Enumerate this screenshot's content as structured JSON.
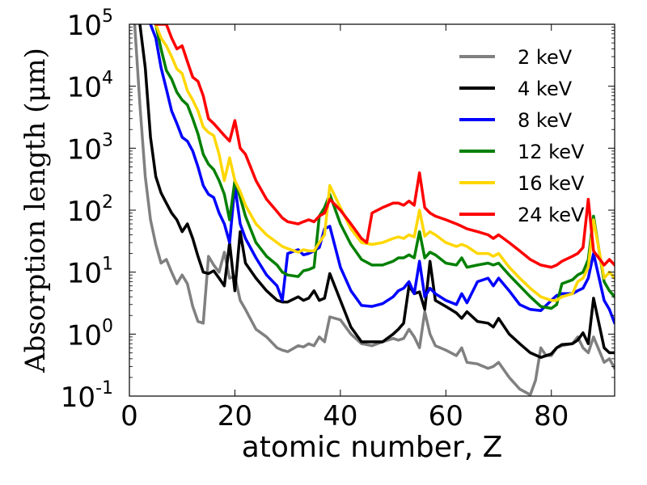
{
  "chart_data": {
    "type": "line",
    "title": "",
    "xlabel": "atomic number, Z",
    "ylabel": "Absorption length (μm)",
    "xlim": [
      0,
      92
    ],
    "ylim": [
      0.1,
      100000
    ],
    "yscale": "log",
    "x_ticks": [
      0,
      20,
      40,
      60,
      80
    ],
    "x_tick_labels": [
      "0",
      "20",
      "40",
      "60",
      "80"
    ],
    "y_ticks": [
      0.1,
      1,
      10,
      100,
      1000,
      10000,
      100000
    ],
    "y_tick_labels": [
      {
        "base": "10",
        "exp": "-1"
      },
      {
        "base": "10",
        "exp": "0"
      },
      {
        "base": "10",
        "exp": "1"
      },
      {
        "base": "10",
        "exp": "2"
      },
      {
        "base": "10",
        "exp": "3"
      },
      {
        "base": "10",
        "exp": "4"
      },
      {
        "base": "10",
        "exp": "5"
      }
    ],
    "grid": false,
    "legend_position": "upper-right",
    "series": [
      {
        "name": "2 keV",
        "color": "#808080",
        "x": [
          1,
          2,
          3,
          4,
          5,
          6,
          7,
          8,
          9,
          10,
          11,
          12,
          13,
          14,
          15,
          16,
          17,
          18,
          19,
          20,
          21,
          22,
          24,
          26,
          28,
          29,
          30,
          32,
          33,
          34,
          35,
          36,
          37,
          38,
          40,
          42,
          44,
          46,
          48,
          50,
          51,
          52,
          53,
          54,
          55,
          56,
          57,
          58,
          60,
          62,
          63,
          64,
          66,
          68,
          69,
          70,
          72,
          74,
          76,
          77,
          78,
          79,
          80,
          81,
          82,
          84,
          85,
          86,
          87,
          88,
          90,
          91,
          92
        ],
        "y": [
          100000,
          5000,
          350,
          70,
          28,
          14,
          16,
          10,
          6.5,
          9,
          6.5,
          2.8,
          1.6,
          1.5,
          18,
          13,
          10,
          21,
          8,
          8.5,
          3.5,
          2.5,
          1.2,
          0.9,
          0.6,
          0.55,
          0.52,
          0.65,
          0.62,
          0.7,
          0.65,
          0.9,
          0.75,
          1.9,
          1.7,
          1.0,
          0.7,
          0.65,
          0.75,
          0.85,
          0.8,
          0.85,
          1.2,
          0.9,
          0.6,
          2.3,
          1.0,
          0.65,
          0.55,
          0.45,
          0.6,
          0.35,
          0.33,
          0.28,
          0.3,
          0.35,
          0.2,
          0.13,
          0.105,
          0.18,
          0.6,
          0.45,
          0.45,
          0.6,
          0.65,
          0.7,
          0.9,
          0.6,
          0.5,
          0.9,
          0.35,
          0.4,
          0.28
        ]
      },
      {
        "name": "4 keV",
        "color": "#000000",
        "x": [
          2,
          3,
          4,
          5,
          6,
          7,
          8,
          9,
          10,
          11,
          12,
          13,
          14,
          15,
          16,
          17,
          18,
          19,
          20,
          21,
          22,
          24,
          26,
          28,
          29,
          30,
          32,
          33,
          34,
          35,
          36,
          37,
          38,
          40,
          42,
          44,
          46,
          48,
          50,
          51,
          52,
          53,
          54,
          55,
          56,
          57,
          58,
          60,
          62,
          63,
          64,
          66,
          68,
          69,
          70,
          72,
          74,
          76,
          78,
          80,
          81,
          82,
          84,
          85,
          86,
          87,
          88,
          90,
          91,
          92
        ],
        "y": [
          100000,
          20000,
          1500,
          350,
          190,
          130,
          90,
          70,
          45,
          60,
          35,
          18,
          10,
          9.5,
          10.5,
          8,
          6,
          30,
          5,
          45,
          14,
          8,
          5,
          3.5,
          3.3,
          3.3,
          4,
          3.5,
          3.8,
          5,
          3.5,
          3.8,
          9.5,
          3.5,
          1.3,
          0.75,
          0.75,
          0.75,
          1.0,
          1.2,
          1.5,
          6,
          4.5,
          4.8,
          2.5,
          15,
          3.5,
          2.8,
          2.2,
          1.8,
          2.3,
          1.6,
          1.5,
          1.3,
          1.8,
          1.0,
          0.7,
          0.5,
          0.42,
          0.48,
          0.6,
          0.68,
          0.7,
          0.8,
          1.05,
          0.7,
          3.8,
          0.6,
          0.5,
          0.5
        ]
      },
      {
        "name": "8 keV",
        "color": "#0000ff",
        "x": [
          4,
          5,
          6,
          7,
          8,
          9,
          10,
          11,
          12,
          13,
          14,
          15,
          16,
          17,
          18,
          19,
          20,
          21,
          22,
          24,
          26,
          28,
          29,
          30,
          32,
          33,
          34,
          35,
          36,
          37,
          38,
          40,
          42,
          44,
          46,
          48,
          50,
          51,
          52,
          53,
          54,
          55,
          56,
          57,
          58,
          60,
          62,
          63,
          64,
          66,
          68,
          69,
          70,
          72,
          74,
          76,
          78,
          80,
          81,
          82,
          84,
          85,
          86,
          87,
          88,
          90,
          91,
          92
        ],
        "y": [
          100000,
          60000,
          20000,
          9000,
          4000,
          2500,
          1500,
          1300,
          900,
          500,
          250,
          180,
          160,
          90,
          60,
          30,
          250,
          60,
          35,
          17,
          9,
          6,
          3.5,
          20,
          23,
          19,
          20,
          22,
          25,
          50,
          55,
          12,
          5,
          2.9,
          2.8,
          3.1,
          4,
          5.0,
          5.5,
          7,
          4.5,
          15,
          4,
          5.5,
          4.5,
          3.5,
          3.0,
          4.5,
          3.2,
          7,
          8,
          6,
          8,
          5,
          3.0,
          2.5,
          2.4,
          3.5,
          4.2,
          4.5,
          4.5,
          5,
          5.5,
          8,
          20,
          3.5,
          2.5,
          1.5
        ]
      },
      {
        "name": "12 keV",
        "color": "#008000",
        "x": [
          5,
          6,
          7,
          8,
          9,
          10,
          11,
          12,
          13,
          14,
          15,
          16,
          17,
          18,
          19,
          20,
          21,
          22,
          24,
          26,
          28,
          29,
          30,
          32,
          33,
          34,
          35,
          36,
          37,
          38,
          40,
          42,
          44,
          46,
          48,
          50,
          51,
          52,
          53,
          54,
          55,
          56,
          57,
          58,
          60,
          62,
          63,
          64,
          66,
          68,
          69,
          70,
          72,
          74,
          76,
          78,
          80,
          81,
          82,
          84,
          85,
          86,
          87,
          88,
          90,
          91,
          92
        ],
        "y": [
          100000,
          40000,
          18000,
          13000,
          8000,
          6000,
          5000,
          3000,
          1700,
          800,
          550,
          450,
          300,
          180,
          70,
          300,
          160,
          80,
          30,
          18,
          13,
          10,
          9,
          8.5,
          10.5,
          11,
          12,
          80,
          110,
          180,
          60,
          28,
          16,
          13,
          13,
          15,
          17,
          17,
          19,
          17,
          45,
          17,
          21,
          19,
          14,
          13,
          17,
          12,
          13,
          14,
          13,
          14,
          9,
          6,
          4,
          2.8,
          2.6,
          3,
          6.5,
          7.5,
          9,
          10,
          16,
          80,
          7,
          5,
          4
        ]
      },
      {
        "name": "16 keV",
        "color": "#ffd700",
        "x": [
          5,
          6,
          7,
          8,
          9,
          10,
          11,
          12,
          13,
          14,
          15,
          16,
          17,
          18,
          19,
          20,
          21,
          22,
          24,
          26,
          28,
          29,
          30,
          32,
          33,
          34,
          35,
          36,
          37,
          38,
          40,
          42,
          44,
          46,
          48,
          50,
          51,
          52,
          53,
          54,
          55,
          56,
          57,
          58,
          60,
          62,
          63,
          64,
          66,
          68,
          69,
          70,
          72,
          74,
          76,
          78,
          80,
          81,
          82,
          84,
          85,
          86,
          87,
          88,
          90,
          91,
          92
        ],
        "y": [
          100000,
          60000,
          45000,
          30000,
          19000,
          16000,
          8500,
          6000,
          4000,
          2200,
          1800,
          1600,
          800,
          300,
          700,
          300,
          200,
          120,
          60,
          40,
          30,
          26,
          24,
          21,
          23,
          22,
          22,
          30,
          40,
          250,
          110,
          50,
          30,
          28,
          30,
          35,
          37,
          35,
          40,
          37,
          100,
          38,
          45,
          40,
          30,
          26,
          28,
          26,
          20,
          20,
          18,
          20,
          12,
          8,
          5.5,
          4.0,
          3.5,
          3.5,
          4.0,
          4.5,
          7.0,
          8.0,
          12,
          70,
          8,
          10,
          8
        ]
      },
      {
        "name": "24 keV",
        "color": "#ff0000",
        "x": [
          5,
          6,
          7,
          8,
          9,
          10,
          11,
          12,
          13,
          14,
          15,
          16,
          17,
          18,
          19,
          20,
          21,
          22,
          24,
          26,
          28,
          29,
          30,
          32,
          33,
          34,
          35,
          36,
          37,
          38,
          40,
          42,
          44,
          45,
          46,
          48,
          50,
          51,
          52,
          53,
          54,
          55,
          56,
          57,
          58,
          60,
          62,
          63,
          64,
          66,
          68,
          69,
          70,
          72,
          74,
          76,
          78,
          80,
          81,
          82,
          84,
          85,
          86,
          87,
          88,
          90,
          91,
          92
        ],
        "y": [
          100000,
          100000,
          100000,
          60000,
          40000,
          45000,
          25000,
          14000,
          12000,
          7000,
          3000,
          2500,
          2000,
          1600,
          1300,
          2800,
          1000,
          800,
          300,
          150,
          95,
          75,
          65,
          60,
          65,
          70,
          65,
          80,
          90,
          150,
          100,
          60,
          35,
          30,
          90,
          110,
          130,
          130,
          120,
          140,
          120,
          400,
          110,
          90,
          80,
          70,
          60,
          55,
          50,
          45,
          40,
          35,
          40,
          30,
          22,
          16,
          13,
          12,
          13,
          15,
          18,
          20,
          25,
          150,
          22,
          13,
          16,
          13
        ]
      }
    ]
  }
}
